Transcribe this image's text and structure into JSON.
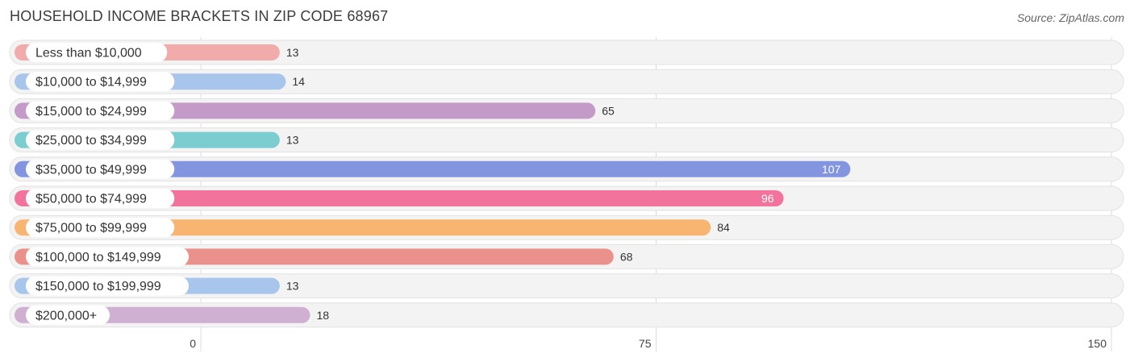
{
  "header": {
    "title": "HOUSEHOLD INCOME BRACKETS IN ZIP CODE 68967",
    "source": "Source: ZipAtlas.com"
  },
  "chart_data": {
    "type": "bar",
    "orientation": "horizontal",
    "title": "HOUSEHOLD INCOME BRACKETS IN ZIP CODE 68967",
    "categories": [
      "Less than $10,000",
      "$10,000 to $14,999",
      "$15,000 to $24,999",
      "$25,000 to $34,999",
      "$35,000 to $49,999",
      "$50,000 to $74,999",
      "$75,000 to $99,999",
      "$100,000 to $149,999",
      "$150,000 to $199,999",
      "$200,000+"
    ],
    "values": [
      13,
      14,
      65,
      13,
      107,
      96,
      84,
      68,
      13,
      18
    ],
    "colors": [
      "#f2abab",
      "#a8c6ec",
      "#c39ac8",
      "#7ccdd0",
      "#8495e0",
      "#f2739b",
      "#f8b571",
      "#eb918b",
      "#a8c6ec",
      "#cfafd2"
    ],
    "xlim": [
      0,
      150
    ],
    "xticks": [
      "0",
      "75",
      "150"
    ],
    "grid": true,
    "value_labels_inside": [
      false,
      false,
      false,
      false,
      true,
      true,
      false,
      false,
      false,
      false
    ]
  }
}
